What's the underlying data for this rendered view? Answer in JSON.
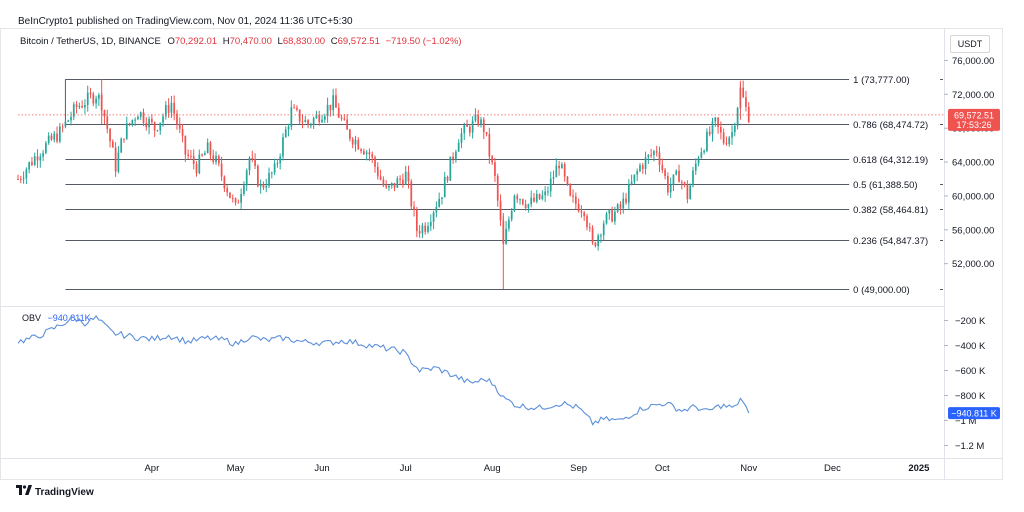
{
  "header": {
    "published": "BeInCrypto1 published on TradingView.com, Nov 01, 2024 11:36 UTC+5:30"
  },
  "symbol": {
    "name": "Bitcoin / TetherUS, 1D, BINANCE",
    "o_label": "O",
    "o_value": "70,292.01",
    "h_label": "H",
    "h_value": "70,470.00",
    "l_label": "L",
    "l_value": "68,830.00",
    "c_label": "C",
    "c_value": "69,572.51",
    "change": "−719.50 (−1.02%)"
  },
  "currency_button": "USDT",
  "obv": {
    "label": "OBV",
    "value": "−940.811K"
  },
  "footer": {
    "brand": "TradingView"
  },
  "colors": {
    "up": "#26a69a",
    "down": "#ef5350",
    "obv": "#5b8fd9",
    "badge_red": "#ef5350",
    "badge_blue": "#2962ff"
  },
  "chart_data": [
    {
      "type": "candlestick",
      "title": "Bitcoin / TetherUS, 1D, BINANCE",
      "ylim": [
        47000,
        77000
      ],
      "y_ticks": [
        76000,
        72000,
        68000,
        64000,
        60000,
        56000,
        52000
      ],
      "y_tick_labels": [
        "76,000.00",
        "72,000.00",
        "68,000.00",
        "64,000.00",
        "60,000.00",
        "56,000.00",
        "52,000.00"
      ],
      "x_start": "2024-02-13",
      "x_end": "2025-01-10",
      "x_ticks": [
        {
          "date": "2024-04-01",
          "label": "Apr"
        },
        {
          "date": "2024-05-01",
          "label": "May"
        },
        {
          "date": "2024-06-01",
          "label": "Jun"
        },
        {
          "date": "2024-07-01",
          "label": "Jul"
        },
        {
          "date": "2024-08-01",
          "label": "Aug"
        },
        {
          "date": "2024-09-01",
          "label": "Sep"
        },
        {
          "date": "2024-10-01",
          "label": "Oct"
        },
        {
          "date": "2024-11-01",
          "label": "Nov"
        },
        {
          "date": "2024-12-01",
          "label": "Dec"
        },
        {
          "date": "2025-01-01",
          "label": "2025"
        }
      ],
      "last_price": "69,572.51",
      "last_price_value": 69572.51,
      "countdown": "17:53:26",
      "fib_levels": [
        {
          "ratio": "1",
          "price": 73777,
          "label": "1 (73,777.00)"
        },
        {
          "ratio": "0.786",
          "price": 68474.72,
          "label": "0.786 (68,474.72)"
        },
        {
          "ratio": "0.618",
          "price": 64312.19,
          "label": "0.618 (64,312.19)"
        },
        {
          "ratio": "0.5",
          "price": 61388.5,
          "label": "0.5 (61,388.50)"
        },
        {
          "ratio": "0.382",
          "price": 58464.81,
          "label": "0.382 (58,464.81)"
        },
        {
          "ratio": "0.236",
          "price": 54847.37,
          "label": "0.236 (54,847.37)"
        },
        {
          "ratio": "0",
          "price": 49000,
          "label": "0 (49,000.00)"
        }
      ],
      "fib_start": "2024-03-01",
      "fib_end": "2024-12-07",
      "close_path": [
        [
          "2024-02-13",
          62000
        ],
        [
          "2024-02-20",
          65000
        ],
        [
          "2024-02-28",
          67500
        ],
        [
          "2024-03-05",
          70500
        ],
        [
          "2024-03-12",
          72000
        ],
        [
          "2024-03-14",
          71000
        ],
        [
          "2024-03-19",
          63500
        ],
        [
          "2024-03-22",
          67500
        ],
        [
          "2024-03-27",
          70000
        ],
        [
          "2024-04-02",
          68000
        ],
        [
          "2024-04-08",
          71000
        ],
        [
          "2024-04-13",
          65000
        ],
        [
          "2024-04-17",
          63500
        ],
        [
          "2024-04-21",
          65500
        ],
        [
          "2024-04-24",
          64000
        ],
        [
          "2024-05-01",
          58500
        ],
        [
          "2024-05-06",
          64500
        ],
        [
          "2024-05-10",
          61000
        ],
        [
          "2024-05-15",
          63000
        ],
        [
          "2024-05-21",
          70000
        ],
        [
          "2024-05-27",
          68500
        ],
        [
          "2024-06-05",
          71000
        ],
        [
          "2024-06-10",
          67500
        ],
        [
          "2024-06-18",
          65000
        ],
        [
          "2024-06-24",
          60500
        ],
        [
          "2024-07-01",
          62500
        ],
        [
          "2024-07-05",
          56000
        ],
        [
          "2024-07-08",
          56500
        ],
        [
          "2024-07-14",
          60500
        ],
        [
          "2024-07-20",
          67000
        ],
        [
          "2024-07-27",
          69000
        ],
        [
          "2024-07-29",
          68000
        ],
        [
          "2024-08-02",
          62000
        ],
        [
          "2024-08-05",
          54000
        ],
        [
          "2024-08-09",
          60500
        ],
        [
          "2024-08-14",
          59000
        ],
        [
          "2024-08-20",
          60000
        ],
        [
          "2024-08-25",
          64000
        ],
        [
          "2024-08-29",
          59500
        ],
        [
          "2024-09-03",
          58500
        ],
        [
          "2024-09-06",
          54000
        ],
        [
          "2024-09-10",
          57000
        ],
        [
          "2024-09-16",
          58500
        ],
        [
          "2024-09-23",
          63500
        ],
        [
          "2024-09-29",
          65500
        ],
        [
          "2024-10-03",
          61000
        ],
        [
          "2024-10-07",
          62500
        ],
        [
          "2024-10-10",
          60000
        ],
        [
          "2024-10-14",
          65000
        ],
        [
          "2024-10-20",
          68500
        ],
        [
          "2024-10-23",
          66500
        ],
        [
          "2024-10-26",
          67500
        ],
        [
          "2024-10-29",
          72500
        ],
        [
          "2024-10-31",
          70300
        ],
        [
          "2024-11-01",
          69572
        ]
      ],
      "wick_highlights": [
        {
          "date": "2024-08-05",
          "low": 49000,
          "high": 58000
        },
        {
          "date": "2024-10-29",
          "low": 69000,
          "high": 73600
        },
        {
          "date": "2024-03-14",
          "low": 68500,
          "high": 73777
        }
      ]
    },
    {
      "type": "line",
      "title": "OBV",
      "ylim": [
        -1300000,
        -100000
      ],
      "y_ticks": [
        -200000,
        -400000,
        -600000,
        -800000,
        -1000000,
        -1200000
      ],
      "y_tick_labels": [
        "−200 K",
        "−400 K",
        "−600 K",
        "−800 K",
        "−1 M",
        "−1.2 M"
      ],
      "last_value": "−940.811 K",
      "last_value_number": -940811,
      "series": [
        {
          "points": [
            [
              "2024-02-13",
              -370000
            ],
            [
              "2024-02-20",
              -330000
            ],
            [
              "2024-02-27",
              -250000
            ],
            [
              "2024-03-04",
              -180000
            ],
            [
              "2024-03-08",
              -220000
            ],
            [
              "2024-03-12",
              -180000
            ],
            [
              "2024-03-18",
              -300000
            ],
            [
              "2024-03-25",
              -330000
            ],
            [
              "2024-04-01",
              -350000
            ],
            [
              "2024-04-07",
              -320000
            ],
            [
              "2024-04-14",
              -370000
            ],
            [
              "2024-04-21",
              -340000
            ],
            [
              "2024-04-28",
              -360000
            ],
            [
              "2024-05-01",
              -390000
            ],
            [
              "2024-05-06",
              -330000
            ],
            [
              "2024-05-12",
              -360000
            ],
            [
              "2024-05-18",
              -340000
            ],
            [
              "2024-05-25",
              -370000
            ],
            [
              "2024-06-03",
              -380000
            ],
            [
              "2024-06-09",
              -360000
            ],
            [
              "2024-06-16",
              -390000
            ],
            [
              "2024-06-23",
              -420000
            ],
            [
              "2024-06-30",
              -450000
            ],
            [
              "2024-07-06",
              -600000
            ],
            [
              "2024-07-12",
              -580000
            ],
            [
              "2024-07-18",
              -640000
            ],
            [
              "2024-07-24",
              -700000
            ],
            [
              "2024-07-30",
              -670000
            ],
            [
              "2024-08-02",
              -720000
            ],
            [
              "2024-08-05",
              -820000
            ],
            [
              "2024-08-10",
              -880000
            ],
            [
              "2024-08-18",
              -900000
            ],
            [
              "2024-08-26",
              -860000
            ],
            [
              "2024-09-01",
              -900000
            ],
            [
              "2024-09-06",
              -1020000
            ],
            [
              "2024-09-10",
              -990000
            ],
            [
              "2024-09-16",
              -1000000
            ],
            [
              "2024-09-24",
              -900000
            ],
            [
              "2024-10-02",
              -860000
            ],
            [
              "2024-10-08",
              -920000
            ],
            [
              "2024-10-13",
              -890000
            ],
            [
              "2024-10-17",
              -930000
            ],
            [
              "2024-10-22",
              -880000
            ],
            [
              "2024-10-27",
              -900000
            ],
            [
              "2024-10-29",
              -820000
            ],
            [
              "2024-11-01",
              -940811
            ]
          ]
        }
      ]
    }
  ]
}
